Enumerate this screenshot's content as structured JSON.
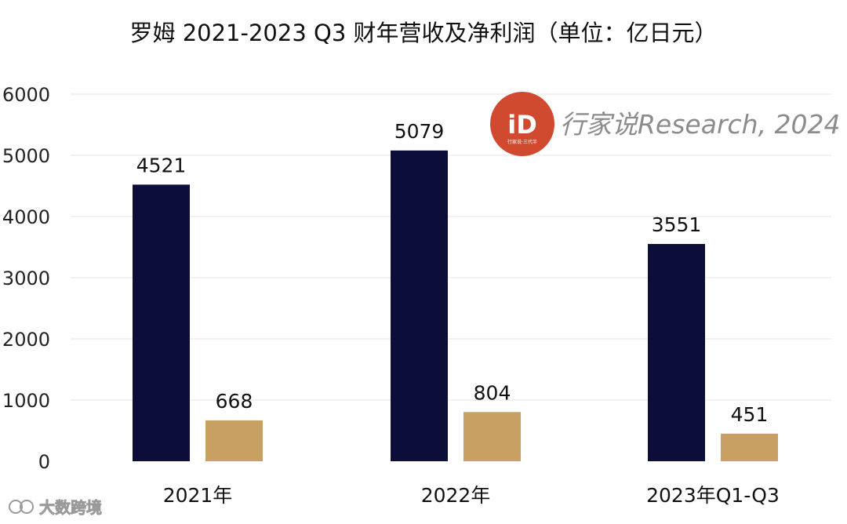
{
  "chart_data": {
    "type": "bar",
    "title": "罗姆 2021-2023 Q3 财年营收及净利润（单位：亿日元）",
    "categories": [
      "2021年",
      "2022年",
      "2023年Q1-Q3"
    ],
    "series": [
      {
        "values": [
          4521,
          5079,
          3551
        ]
      },
      {
        "values": [
          668,
          804,
          451
        ]
      }
    ],
    "ylim": [
      0,
      6000
    ],
    "yticks": [
      0,
      1000,
      2000,
      3000,
      4000,
      5000,
      6000
    ],
    "grid": true,
    "data_labels": true,
    "legend": "none"
  },
  "colors": {
    "revenue": "#0d0d3a",
    "profit": "#c9a063",
    "grid": "#e6e6e6",
    "logo": "#d04a2f"
  },
  "watermarks": {
    "brand": "行家说Research, 2024",
    "logo_mark": "iD",
    "logo_caption": "行家说·三代半",
    "corner": "大数跨境"
  }
}
